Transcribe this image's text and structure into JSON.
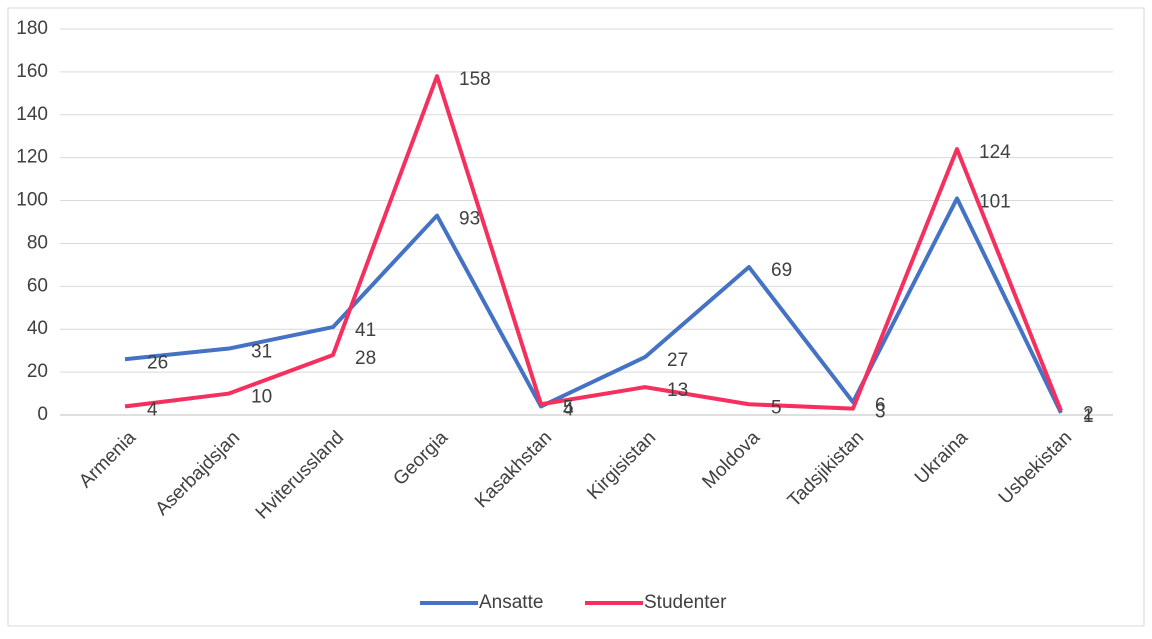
{
  "chart_data": {
    "type": "line",
    "categories": [
      "Armenia",
      "Aserbajdsjan",
      "Hviterussland",
      "Georgia",
      "Kasakhstan",
      "Kirgisistan",
      "Moldova",
      "Tadsjikistan",
      "Ukraina",
      "Usbekistan"
    ],
    "series": [
      {
        "name": "Ansatte",
        "color": "#4472c4",
        "values": [
          26,
          31,
          41,
          93,
          4,
          27,
          69,
          6,
          101,
          1
        ]
      },
      {
        "name": "Studenter",
        "color": "#f5305f",
        "values": [
          4,
          10,
          28,
          158,
          5,
          13,
          5,
          3,
          124,
          2
        ]
      }
    ],
    "ylim": [
      0,
      180
    ],
    "yticks": [
      0,
      20,
      40,
      60,
      80,
      100,
      120,
      140,
      160,
      180
    ],
    "grid": true,
    "legend": "bottom"
  }
}
